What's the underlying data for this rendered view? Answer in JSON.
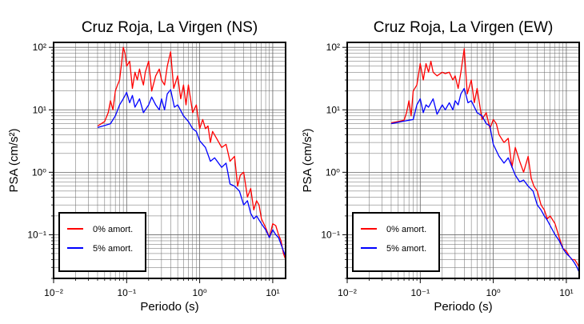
{
  "chart_data": [
    {
      "type": "line",
      "title": "Cruz Roja, La Virgen (NS)",
      "xlabel": "Periodo (s)",
      "ylabel": "PSA (cm/s²)",
      "xscale": "log",
      "yscale": "log",
      "xlim": [
        0.01,
        15
      ],
      "ylim": [
        0.02,
        120
      ],
      "x_tick_labels": [
        "10⁻²",
        "10⁻¹",
        "10⁰",
        "10¹"
      ],
      "y_tick_labels": [
        "10⁻¹",
        "10⁰",
        "10¹",
        "10²"
      ],
      "grid": true,
      "legend_position": "bottom-left",
      "series": [
        {
          "name": "0% amort.",
          "color": "#ff0000",
          "x": [
            0.04,
            0.05,
            0.056,
            0.06,
            0.065,
            0.07,
            0.075,
            0.08,
            0.085,
            0.09,
            0.095,
            0.1,
            0.11,
            0.12,
            0.13,
            0.14,
            0.15,
            0.16,
            0.17,
            0.18,
            0.2,
            0.22,
            0.25,
            0.28,
            0.3,
            0.33,
            0.36,
            0.4,
            0.44,
            0.5,
            0.55,
            0.6,
            0.65,
            0.7,
            0.8,
            0.9,
            1.0,
            1.1,
            1.2,
            1.3,
            1.4,
            1.5,
            1.7,
            2.0,
            2.3,
            2.6,
            3.0,
            3.3,
            3.6,
            4.0,
            4.5,
            5.0,
            5.5,
            6.0,
            6.5,
            7.0,
            8.0,
            9.0,
            10.0,
            11.0,
            12.0,
            13.0,
            14.0,
            15.0
          ],
          "y": [
            5.5,
            6.5,
            9.0,
            14.0,
            10.0,
            20.0,
            25.0,
            30.0,
            55.0,
            100.0,
            80.0,
            50.0,
            60.0,
            22.0,
            40.0,
            30.0,
            45.0,
            32.0,
            25.0,
            40.0,
            60.0,
            20.0,
            35.0,
            45.0,
            30.0,
            25.0,
            50.0,
            85.0,
            22.0,
            35.0,
            15.0,
            25.0,
            12.0,
            25.0,
            9.0,
            12.0,
            5.0,
            7.0,
            5.0,
            5.5,
            3.0,
            4.5,
            3.5,
            2.5,
            2.8,
            1.5,
            1.8,
            0.6,
            0.9,
            1.0,
            0.4,
            0.55,
            0.25,
            0.35,
            0.3,
            0.18,
            0.13,
            0.09,
            0.15,
            0.14,
            0.1,
            0.08,
            0.05,
            0.04
          ]
        },
        {
          "name": "5% amort.",
          "color": "#0000ff",
          "x": [
            0.04,
            0.05,
            0.06,
            0.07,
            0.08,
            0.09,
            0.1,
            0.11,
            0.12,
            0.13,
            0.15,
            0.17,
            0.2,
            0.22,
            0.25,
            0.28,
            0.3,
            0.33,
            0.36,
            0.4,
            0.45,
            0.5,
            0.6,
            0.7,
            0.8,
            0.9,
            1.0,
            1.2,
            1.4,
            1.6,
            2.0,
            2.3,
            2.6,
            3.0,
            3.5,
            4.0,
            4.5,
            5.0,
            5.5,
            6.0,
            7.0,
            8.0,
            9.0,
            10.0,
            11.0,
            12.0,
            13.0,
            14.0,
            15.0
          ],
          "y": [
            5.2,
            5.6,
            6.0,
            8.0,
            12.0,
            15.0,
            19.0,
            13.0,
            17.0,
            11.0,
            15.0,
            9.0,
            12.0,
            16.0,
            12.0,
            10.0,
            15.0,
            10.0,
            18.0,
            21.0,
            11.0,
            12.0,
            8.0,
            6.5,
            5.0,
            4.5,
            3.2,
            2.5,
            1.5,
            1.7,
            1.2,
            1.4,
            0.65,
            0.6,
            0.5,
            0.3,
            0.35,
            0.22,
            0.18,
            0.2,
            0.15,
            0.12,
            0.09,
            0.12,
            0.1,
            0.09,
            0.07,
            0.055,
            0.045
          ]
        }
      ]
    },
    {
      "type": "line",
      "title": "Cruz Roja, La Virgen (EW)",
      "xlabel": "Periodo (s)",
      "ylabel": "PSA (cm/s²)",
      "xscale": "log",
      "yscale": "log",
      "xlim": [
        0.01,
        15
      ],
      "ylim": [
        0.02,
        120
      ],
      "x_tick_labels": [
        "10⁻²",
        "10⁻¹",
        "10⁰",
        "10¹"
      ],
      "y_tick_labels": [
        "10⁻¹",
        "10⁰",
        "10¹",
        "10²"
      ],
      "grid": true,
      "legend_position": "bottom-left",
      "series": [
        {
          "name": "0% amort.",
          "color": "#ff0000",
          "x": [
            0.04,
            0.05,
            0.06,
            0.065,
            0.07,
            0.075,
            0.08,
            0.09,
            0.1,
            0.11,
            0.12,
            0.13,
            0.14,
            0.15,
            0.17,
            0.2,
            0.22,
            0.25,
            0.28,
            0.3,
            0.33,
            0.36,
            0.4,
            0.44,
            0.5,
            0.55,
            0.6,
            0.7,
            0.8,
            0.9,
            1.0,
            1.1,
            1.2,
            1.4,
            1.6,
            1.8,
            2.0,
            2.3,
            2.6,
            3.0,
            3.3,
            3.6,
            4.0,
            4.5,
            5.0,
            5.5,
            6.0,
            7.0,
            8.0,
            9.0,
            10.0,
            11.0,
            12.0,
            13.0,
            14.0,
            15.0
          ],
          "y": [
            6.2,
            6.5,
            6.8,
            9.0,
            14.0,
            8.0,
            20.0,
            25.0,
            55.0,
            30.0,
            55.0,
            40.0,
            60.0,
            40.0,
            35.0,
            40.0,
            38.0,
            40.0,
            30.0,
            35.0,
            22.0,
            40.0,
            95.0,
            18.0,
            30.0,
            13.0,
            22.0,
            7.0,
            9.0,
            5.0,
            7.0,
            6.0,
            4.0,
            3.0,
            3.5,
            1.2,
            2.5,
            1.5,
            1.0,
            1.8,
            0.8,
            0.6,
            0.5,
            0.3,
            0.25,
            0.18,
            0.2,
            0.15,
            0.09,
            0.06,
            0.055,
            0.045,
            0.04,
            0.04,
            0.035,
            0.03
          ]
        },
        {
          "name": "5% amort.",
          "color": "#0000ff",
          "x": [
            0.04,
            0.05,
            0.06,
            0.07,
            0.08,
            0.09,
            0.1,
            0.11,
            0.12,
            0.13,
            0.15,
            0.17,
            0.2,
            0.22,
            0.25,
            0.28,
            0.3,
            0.33,
            0.36,
            0.4,
            0.45,
            0.5,
            0.6,
            0.7,
            0.8,
            0.9,
            1.0,
            1.2,
            1.4,
            1.6,
            2.0,
            2.3,
            2.6,
            3.0,
            3.5,
            4.0,
            4.5,
            5.0,
            5.5,
            6.0,
            7.0,
            8.0,
            9.0,
            10.0,
            11.0,
            12.0,
            13.0,
            14.0,
            15.0
          ],
          "y": [
            6.0,
            6.3,
            6.6,
            6.8,
            7.0,
            12.0,
            15.0,
            9.0,
            12.0,
            11.0,
            15.0,
            8.5,
            12.0,
            10.0,
            13.0,
            10.0,
            14.0,
            12.0,
            18.0,
            22.0,
            13.0,
            14.0,
            9.0,
            8.0,
            6.0,
            5.5,
            2.8,
            1.8,
            1.4,
            1.7,
            0.9,
            0.7,
            0.75,
            0.6,
            0.5,
            0.3,
            0.25,
            0.2,
            0.17,
            0.14,
            0.1,
            0.08,
            0.06,
            0.05,
            0.045,
            0.04,
            0.035,
            0.03,
            0.025
          ]
        }
      ]
    }
  ]
}
